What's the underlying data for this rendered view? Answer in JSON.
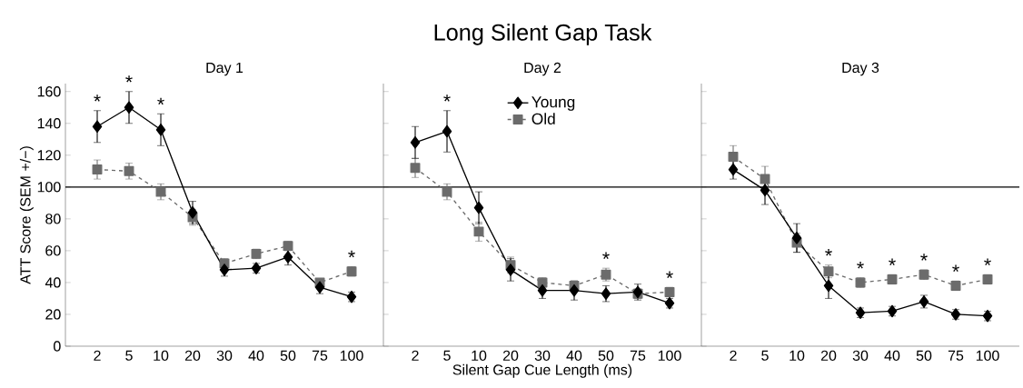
{
  "chart_data": [
    {
      "type": "line",
      "title": "Day 1",
      "ylabel": "ATT Score (SEM +/−)",
      "categories": [
        "2",
        "5",
        "10",
        "20",
        "30",
        "40",
        "50",
        "75",
        "100"
      ],
      "ylim": [
        0,
        165
      ],
      "yticks": [
        0,
        20,
        40,
        60,
        80,
        100,
        120,
        140,
        160
      ],
      "series": [
        {
          "color": "#000000",
          "marker": "diamond",
          "line_style": "solid",
          "values": [
            138,
            150,
            136,
            84,
            48,
            49,
            56,
            37,
            31
          ],
          "errors": [
            10,
            10,
            10,
            7,
            4,
            3,
            5,
            4,
            3
          ]
        },
        {
          "color": "#6b6b6b",
          "marker": "square",
          "line_style": "dashed",
          "values": [
            111,
            110,
            97,
            81,
            52,
            58,
            63,
            40,
            47
          ],
          "errors": [
            6,
            5,
            5,
            5,
            3,
            3,
            3,
            null,
            3
          ]
        }
      ],
      "ref_lines": [
        {
          "axis": "y",
          "value": 100,
          "color": "#000000"
        }
      ],
      "annotations": [
        {
          "text": "*",
          "x": "2",
          "y": 138
        },
        {
          "text": "*",
          "x": "5",
          "y": 150
        },
        {
          "text": "*",
          "x": "10",
          "y": 136
        },
        {
          "text": "*",
          "x": "100",
          "y": 47
        }
      ],
      "legend": false,
      "grid": false
    },
    {
      "type": "line",
      "title": "Day 2",
      "xlabel": "Silent Gap Cue Length (ms)",
      "categories": [
        "2",
        "5",
        "10",
        "20",
        "30",
        "40",
        "50",
        "75",
        "100"
      ],
      "ylim": [
        0,
        165
      ],
      "yticks": [
        0,
        20,
        40,
        60,
        80,
        100,
        120,
        140,
        160
      ],
      "tick_labels": "x",
      "series": [
        {
          "name": "Young",
          "color": "#000000",
          "marker": "diamond",
          "line_style": "solid",
          "values": [
            128,
            135,
            87,
            48,
            35,
            35,
            33,
            34,
            27
          ],
          "errors": [
            10,
            13,
            10,
            7,
            5,
            6,
            5,
            5,
            3
          ]
        },
        {
          "name": "Old",
          "color": "#6b6b6b",
          "marker": "square",
          "line_style": "dashed",
          "values": [
            112,
            97,
            72,
            51,
            40,
            38,
            45,
            33,
            34
          ],
          "errors": [
            6,
            5,
            6,
            5,
            3,
            3,
            4,
            3,
            3
          ]
        }
      ],
      "ref_lines": [
        {
          "axis": "y",
          "value": 100,
          "color": "#000000"
        }
      ],
      "annotations": [
        "Long Silent Gap Task",
        {
          "text": "*",
          "x": "5",
          "y": 135
        },
        {
          "text": "*",
          "x": "50",
          "y": 45
        },
        {
          "text": "*",
          "x": "100",
          "y": 34
        }
      ],
      "legend": "top",
      "grid": false
    },
    {
      "type": "line",
      "title": "Day 3",
      "categories": [
        "2",
        "5",
        "10",
        "20",
        "30",
        "40",
        "50",
        "75",
        "100"
      ],
      "ylim": [
        0,
        165
      ],
      "yticks": [
        0,
        20,
        40,
        60,
        80,
        100,
        120,
        140,
        160
      ],
      "tick_labels": "x",
      "series": [
        {
          "color": "#000000",
          "marker": "diamond",
          "line_style": "solid",
          "values": [
            111,
            98,
            68,
            38,
            21,
            22,
            28,
            20,
            19
          ],
          "errors": [
            6,
            9,
            9,
            8,
            3,
            3,
            4,
            3,
            3
          ]
        },
        {
          "color": "#6b6b6b",
          "marker": "square",
          "line_style": "dashed",
          "values": [
            119,
            105,
            65,
            47,
            40,
            42,
            45,
            38,
            42
          ],
          "errors": [
            7,
            8,
            6,
            4,
            3,
            3,
            3,
            3,
            3
          ]
        }
      ],
      "ref_lines": [
        {
          "axis": "y",
          "value": 100,
          "color": "#000000"
        }
      ],
      "annotations": [
        {
          "text": "*",
          "x": "20",
          "y": 47
        },
        {
          "text": "*",
          "x": "30",
          "y": 40
        },
        {
          "text": "*",
          "x": "40",
          "y": 42
        },
        {
          "text": "*",
          "x": "50",
          "y": 45
        },
        {
          "text": "*",
          "x": "75",
          "y": 38
        },
        {
          "text": "*",
          "x": "100",
          "y": 42
        }
      ],
      "legend": false,
      "grid": false
    }
  ]
}
